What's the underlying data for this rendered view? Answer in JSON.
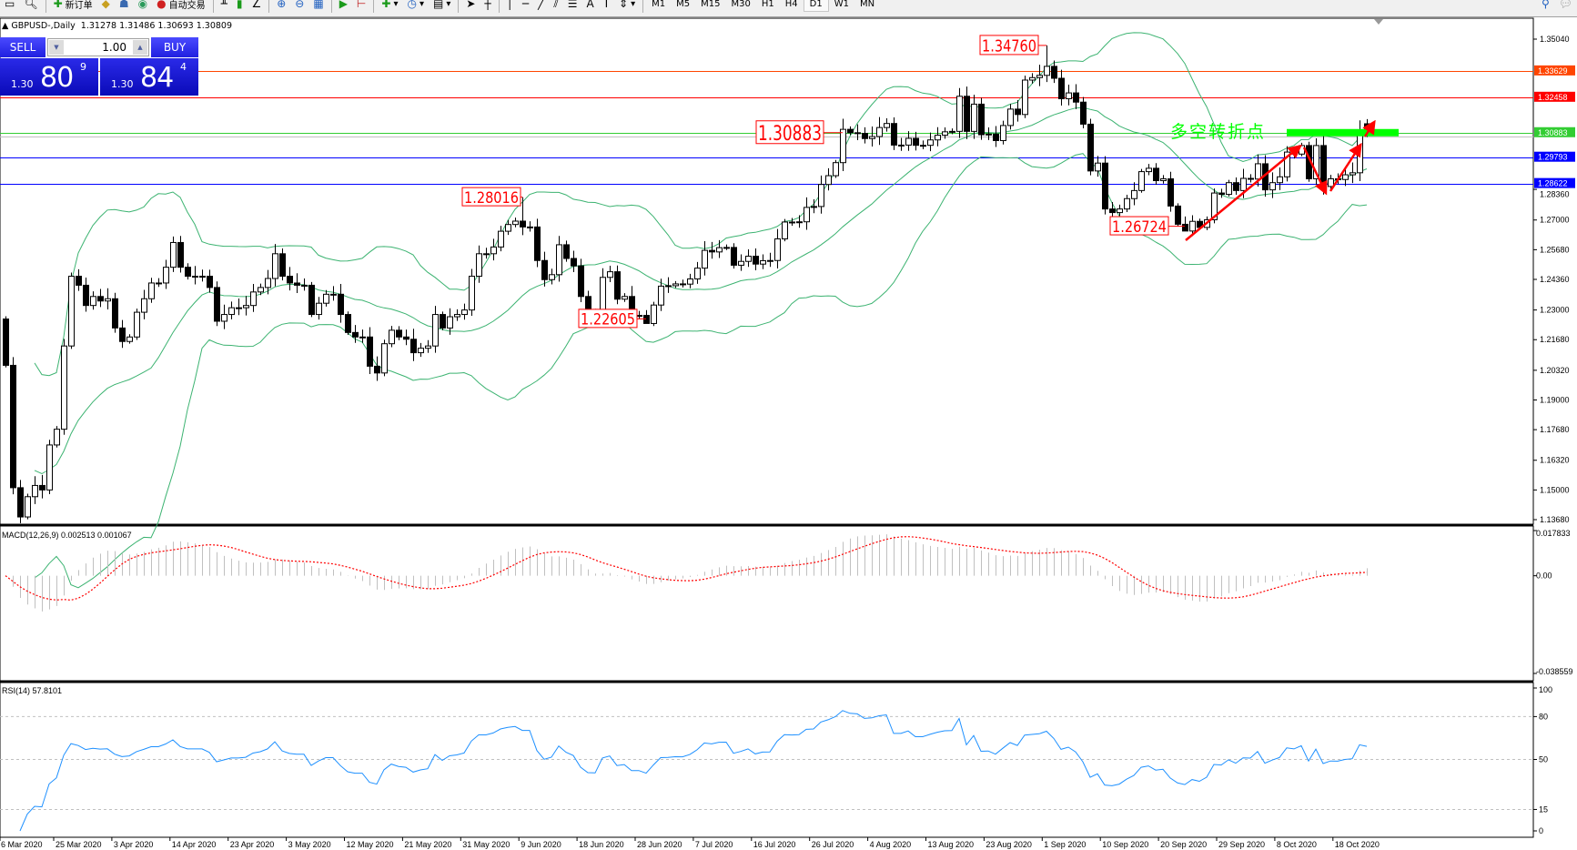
{
  "toolbar": {
    "new_order": "新订单",
    "auto_trading": "自动交易",
    "timeframes": [
      "M1",
      "M5",
      "M15",
      "M30",
      "H1",
      "H4",
      "D1",
      "W1",
      "MN"
    ],
    "active_timeframe": "D1"
  },
  "chart": {
    "symbol_title": "GBPUSD-,Daily",
    "ohlc": "1.31278 1.31486 1.30693 1.30809",
    "last_bar": {
      "open": 1.31278,
      "high": 1.31486,
      "low": 1.30693,
      "close": 1.30809
    },
    "first_open": 1.226,
    "closes": [
      1.2054,
      1.151,
      1.138,
      1.147,
      1.152,
      1.15,
      1.17,
      1.177,
      1.214,
      1.245,
      1.241,
      1.232,
      1.236,
      1.234,
      1.235,
      1.222,
      1.216,
      1.218,
      1.229,
      1.235,
      1.242,
      1.242,
      1.249,
      1.26,
      1.249,
      1.245,
      1.245,
      1.245,
      1.24,
      1.225,
      1.228,
      1.231,
      1.231,
      1.232,
      1.238,
      1.24,
      1.244,
      1.255,
      1.245,
      1.242,
      1.241,
      1.241,
      1.228,
      1.233,
      1.237,
      1.237,
      1.228,
      1.22,
      1.218,
      1.218,
      1.205,
      1.202,
      1.215,
      1.221,
      1.218,
      1.217,
      1.211,
      1.213,
      1.214,
      1.228,
      1.222,
      1.227,
      1.228,
      1.23,
      1.245,
      1.255,
      1.255,
      1.258,
      1.265,
      1.268,
      1.2695,
      1.2669,
      1.2669,
      1.252,
      1.2435,
      1.2457,
      1.259,
      1.2529,
      1.2496,
      1.236,
      1.2283,
      1.2279,
      1.2445,
      1.247,
      1.2348,
      1.236,
      1.2276,
      1.2276,
      1.224,
      1.2322,
      1.2406,
      1.2408,
      1.2416,
      1.2415,
      1.2438,
      1.2486,
      1.2565,
      1.2558,
      1.2577,
      1.2578,
      1.2499,
      1.2516,
      1.2539,
      1.2504,
      1.2519,
      1.252,
      1.2616,
      1.2691,
      1.2689,
      1.2692,
      1.2756,
      1.276,
      1.2858,
      1.2897,
      1.2955,
      1.3103,
      1.3088,
      1.3085,
      1.3062,
      1.3071,
      1.3111,
      1.3129,
      1.3033,
      1.3033,
      1.3063,
      1.3032,
      1.3032,
      1.3056,
      1.3077,
      1.3092,
      1.3094,
      1.325,
      1.3094,
      1.3215,
      1.3079,
      1.3082,
      1.3053,
      1.312,
      1.3193,
      1.3169,
      1.3322,
      1.3333,
      1.3343,
      1.3383,
      1.333,
      1.3239,
      1.3265,
      1.3224,
      1.3126,
      1.2918,
      1.2953,
      1.2749,
      1.2733,
      1.2749,
      1.2795,
      1.2831,
      1.2915,
      1.293,
      1.2875,
      1.2883,
      1.2762,
      1.2681,
      1.2651,
      1.2694,
      1.2667,
      1.2701,
      1.282,
      1.2814,
      1.2866,
      1.2831,
      1.2885,
      1.2882,
      1.295,
      1.2834,
      1.2866,
      1.2892,
      1.3002,
      1.2993,
      1.3031,
      1.2883,
      1.3031,
      1.2849,
      1.2883,
      1.288,
      1.2901,
      1.291,
      1.3097,
      1.30809
    ],
    "price_axis": [
      "1.35040",
      "1.28360",
      "1.27000",
      "1.25680",
      "1.24360",
      "1.23000",
      "1.21680",
      "1.20320",
      "1.19000",
      "1.17680",
      "1.16320",
      "1.15000",
      "1.13680"
    ],
    "price_range": [
      1.1368,
      1.3504
    ],
    "hlines": [
      {
        "price": "1.33629",
        "color": "#ff4500"
      },
      {
        "price": "1.32458",
        "color": "#ff0000"
      },
      {
        "price": "1.30883",
        "color": "#32cd32"
      },
      {
        "price": "1.29793",
        "color": "#0000ff"
      },
      {
        "price": "1.28622",
        "color": "#0000ff"
      }
    ],
    "current_price_line_color": "#c0c0c0",
    "bollinger_color": "#3cb371",
    "annotations": [
      "1.34760",
      "1.30883",
      "1.28016",
      "1.22605",
      "1.26724"
    ],
    "annotation_color": "#ff0000",
    "pivot_text": "多空转折点",
    "pivot_text_color": "#00ff00",
    "pivot_bar_color": "#00ff00",
    "arrow_color": "#ff0000"
  },
  "trade_panel": {
    "sell_label": "SELL",
    "buy_label": "BUY",
    "lot": "1.00",
    "sell_prefix": "1.30",
    "sell_big": "80",
    "sell_sup": "9",
    "buy_prefix": "1.30",
    "buy_big": "84",
    "buy_sup": "4"
  },
  "macd": {
    "title": "MACD(12,26,9) 0.002513 0.001067",
    "axis": [
      "0.017833",
      "0.00",
      "-0.038559"
    ],
    "range": [
      -0.038559,
      0.017833
    ],
    "histogram_color": "#c0c0c0",
    "signal_color": "#ff0000"
  },
  "rsi": {
    "title": "RSI(14) 57.8101",
    "axis": [
      "100",
      "80",
      "50",
      "15",
      "0"
    ],
    "levels": [
      80,
      50,
      15
    ],
    "line_color": "#1e90ff"
  },
  "dates": [
    "6 Mar 2020",
    "25 Mar 2020",
    "3 Apr 2020",
    "14 Apr 2020",
    "23 Apr 2020",
    "3 May 2020",
    "12 May 2020",
    "21 May 2020",
    "31 May 2020",
    "9 Jun 2020",
    "18 Jun 2020",
    "28 Jun 2020",
    "7 Jul 2020",
    "16 Jul 2020",
    "26 Jul 2020",
    "4 Aug 2020",
    "13 Aug 2020",
    "23 Aug 2020",
    "1 Sep 2020",
    "10 Sep 2020",
    "20 Sep 2020",
    "29 Sep 2020",
    "8 Oct 2020",
    "18 Oct 2020"
  ]
}
